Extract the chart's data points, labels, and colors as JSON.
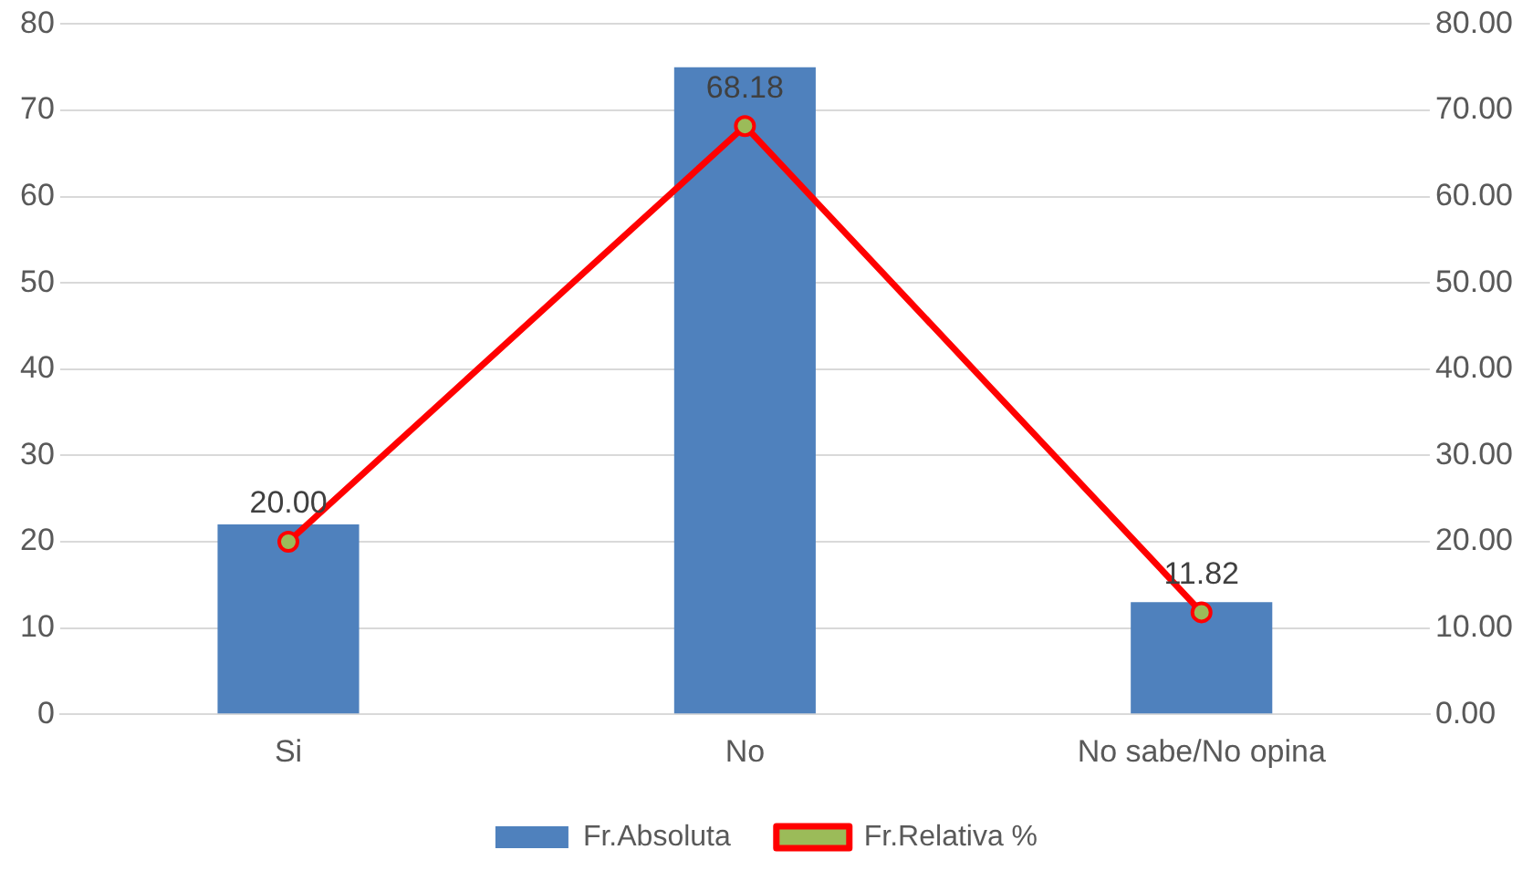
{
  "chart_data": {
    "type": "bar",
    "categories": [
      "Si",
      "No",
      "No sabe/No opina"
    ],
    "series": [
      {
        "name": "Fr.Absoluta",
        "color": "#4f81bd",
        "values": [
          22,
          75,
          13
        ]
      },
      {
        "name": "Fr.Relativa %",
        "type": "line",
        "axis": "y2",
        "color": "#ff0000",
        "marker": "circle",
        "values": [
          20,
          68.18,
          11.82
        ],
        "value_labels": [
          "20.00",
          "68.18",
          "11.82"
        ]
      }
    ],
    "ylim": [
      0,
      80
    ],
    "yticks": [
      0,
      10,
      20,
      30,
      40,
      50,
      60,
      70,
      80
    ],
    "y2lim": [
      0,
      80
    ],
    "y2ticks": [
      {
        "value": 0,
        "label": "0.00"
      },
      {
        "value": 10,
        "label": "10.00"
      },
      {
        "value": 20,
        "label": "20.00"
      },
      {
        "value": 30,
        "label": "30.00"
      },
      {
        "value": 40,
        "label": "40.00"
      },
      {
        "value": 50,
        "label": "50.00"
      },
      {
        "value": 60,
        "label": "60.00"
      },
      {
        "value": 70,
        "label": "70.00"
      },
      {
        "value": 80,
        "label": "80.00"
      }
    ],
    "grid": "y",
    "legend": "bottom"
  }
}
